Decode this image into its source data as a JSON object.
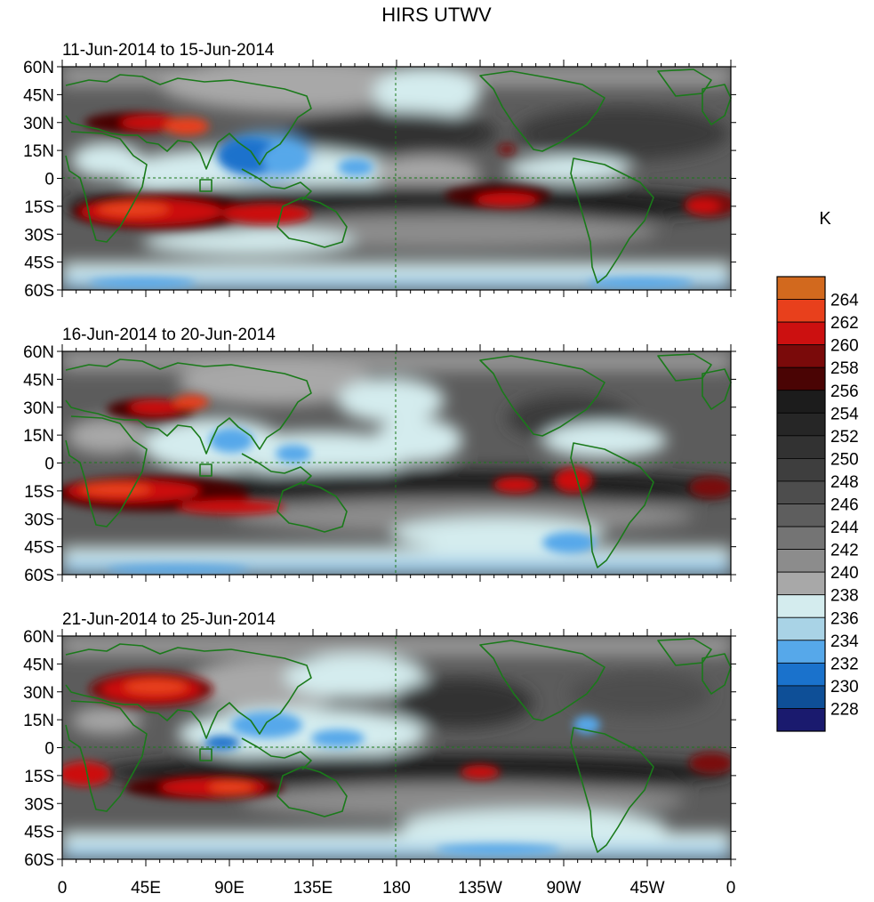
{
  "figure": {
    "title": "HIRS UTWV",
    "colorbar_unit_label": "K"
  },
  "panels": [
    {
      "period_label": "11-Jun-2014 to 15-Jun-2014"
    },
    {
      "period_label": "16-Jun-2014 to 20-Jun-2014"
    },
    {
      "period_label": "21-Jun-2014 to 25-Jun-2014"
    }
  ],
  "axes": {
    "lat_ticks": [
      "60N",
      "45N",
      "30N",
      "15N",
      "0",
      "15S",
      "30S",
      "45S",
      "60S"
    ],
    "lon_ticks": [
      "0",
      "45E",
      "90E",
      "135E",
      "180",
      "135W",
      "90W",
      "45W",
      "0"
    ]
  },
  "colorbar": {
    "levels": [
      "264",
      "262",
      "260",
      "258",
      "256",
      "254",
      "252",
      "250",
      "248",
      "246",
      "244",
      "242",
      "240",
      "238",
      "236",
      "234",
      "232",
      "230",
      "228"
    ],
    "colors": [
      "#d2691e",
      "#e8401c",
      "#cc1010",
      "#7a0a0a",
      "#4a0404",
      "#1c1c1c",
      "#262626",
      "#323232",
      "#3e3e3e",
      "#4d4d4d",
      "#5e5e5e",
      "#747474",
      "#8c8c8c",
      "#a8a8a8",
      "#d4ecee",
      "#a9d3e6",
      "#56a8ea",
      "#1a72cc",
      "#0e4f97",
      "#1a1a6e"
    ]
  },
  "colors": {
    "coastline": "#1a7a1a",
    "frame": "#000000"
  }
}
